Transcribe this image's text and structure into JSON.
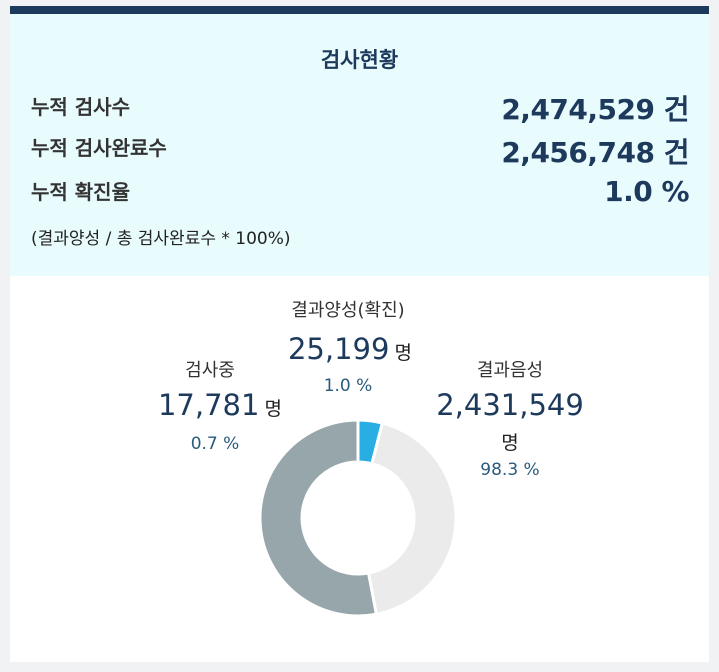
{
  "panel": {
    "title": "검사현황",
    "rows": [
      {
        "label": "누적 검사수",
        "value": "2,474,529 건"
      },
      {
        "label": "누적 검사완료수",
        "value": "2,456,748 건"
      },
      {
        "label": "누적 확진율",
        "value": "1.0 %"
      }
    ],
    "note": "(결과양성 / 총 검사완료수 * 100%)"
  },
  "chart": {
    "positive": {
      "title": "결과양성(확진)",
      "count": "25,199",
      "unit": "명",
      "pct": "1.0 %"
    },
    "testing": {
      "title": "검사중",
      "count": "17,781",
      "unit": "명",
      "pct": "0.7 %"
    },
    "negative": {
      "title": "결과음성",
      "count": "2,431,549",
      "unit": "명",
      "pct": "98.3 %"
    }
  },
  "chart_data": {
    "type": "pie",
    "categories": [
      "결과양성(확진)",
      "결과음성",
      "검사중"
    ],
    "values": [
      25199,
      2431549,
      17781
    ],
    "percentages": [
      1.0,
      98.3,
      0.7
    ],
    "display_fractions": [
      0.04,
      0.43,
      0.53
    ],
    "colors": [
      "#29aee3",
      "#ebebeb",
      "#96a6aa"
    ]
  }
}
